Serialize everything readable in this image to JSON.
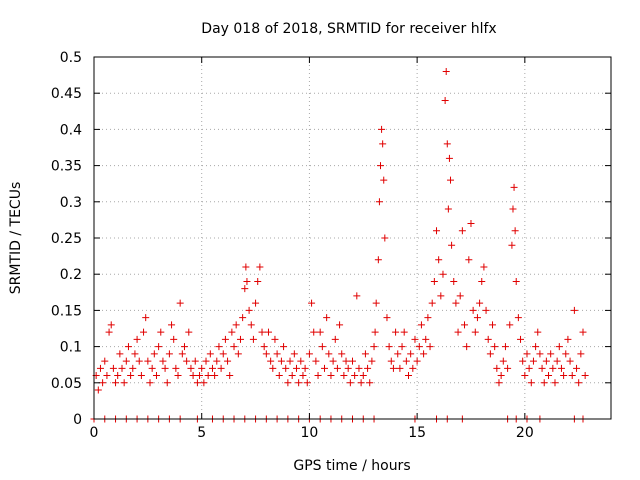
{
  "chart_data": {
    "type": "scatter",
    "title": "Day 018 of 2018, SRMTID for receiver hlfx",
    "xlabel": "GPS time / hours",
    "ylabel": "SRMTID / TECUs",
    "xlim": [
      0,
      24
    ],
    "ylim": [
      0,
      0.5
    ],
    "x_ticks": [
      0,
      5,
      10,
      15,
      20
    ],
    "x_tick_labels": [
      "0",
      "5",
      "10",
      "15",
      "20"
    ],
    "y_ticks": [
      0,
      0.05,
      0.1,
      0.15,
      0.2,
      0.25,
      0.3,
      0.35,
      0.4,
      0.45,
      0.5
    ],
    "y_tick_labels": [
      "0",
      "0.05",
      "0.1",
      "0.15",
      "0.2",
      "0.25",
      "0.3",
      "0.35",
      "0.4",
      "0.45",
      "0.5"
    ],
    "grid": true,
    "marker": "plus",
    "series": [
      {
        "name": "SRMTID",
        "color": "#e00000",
        "points": [
          [
            0.1,
            0.06
          ],
          [
            0.2,
            0.04
          ],
          [
            0.3,
            0.07
          ],
          [
            0.4,
            0.05
          ],
          [
            0.5,
            0.08
          ],
          [
            0.6,
            0.06
          ],
          [
            0.7,
            0.12
          ],
          [
            0.8,
            0.13
          ],
          [
            0.9,
            0.07
          ],
          [
            1.0,
            0.05
          ],
          [
            1.1,
            0.06
          ],
          [
            1.2,
            0.09
          ],
          [
            1.3,
            0.07
          ],
          [
            1.4,
            0.05
          ],
          [
            1.5,
            0.08
          ],
          [
            1.6,
            0.1
          ],
          [
            1.7,
            0.06
          ],
          [
            1.8,
            0.07
          ],
          [
            1.9,
            0.09
          ],
          [
            2.0,
            0.11
          ],
          [
            2.1,
            0.08
          ],
          [
            2.2,
            0.06
          ],
          [
            2.3,
            0.12
          ],
          [
            2.4,
            0.14
          ],
          [
            2.5,
            0.08
          ],
          [
            2.6,
            0.05
          ],
          [
            2.7,
            0.07
          ],
          [
            2.8,
            0.09
          ],
          [
            2.9,
            0.06
          ],
          [
            3.0,
            0.1
          ],
          [
            3.1,
            0.12
          ],
          [
            3.2,
            0.08
          ],
          [
            3.3,
            0.07
          ],
          [
            3.4,
            0.05
          ],
          [
            3.5,
            0.09
          ],
          [
            3.6,
            0.13
          ],
          [
            3.7,
            0.11
          ],
          [
            3.8,
            0.07
          ],
          [
            3.9,
            0.06
          ],
          [
            4.0,
            0.16
          ],
          [
            4.1,
            0.09
          ],
          [
            4.2,
            0.1
          ],
          [
            4.3,
            0.08
          ],
          [
            4.4,
            0.12
          ],
          [
            4.5,
            0.07
          ],
          [
            4.6,
            0.06
          ],
          [
            4.7,
            0.08
          ],
          [
            4.8,
            0.05
          ],
          [
            4.9,
            0.06
          ],
          [
            5.0,
            0.07
          ],
          [
            5.1,
            0.05
          ],
          [
            5.2,
            0.08
          ],
          [
            5.3,
            0.06
          ],
          [
            5.4,
            0.09
          ],
          [
            5.5,
            0.07
          ],
          [
            5.6,
            0.06
          ],
          [
            5.7,
            0.08
          ],
          [
            5.8,
            0.1
          ],
          [
            5.9,
            0.07
          ],
          [
            6.0,
            0.09
          ],
          [
            6.1,
            0.11
          ],
          [
            6.2,
            0.08
          ],
          [
            6.3,
            0.06
          ],
          [
            6.4,
            0.12
          ],
          [
            6.5,
            0.1
          ],
          [
            6.6,
            0.13
          ],
          [
            6.7,
            0.09
          ],
          [
            6.8,
            0.11
          ],
          [
            6.9,
            0.14
          ],
          [
            7.0,
            0.18
          ],
          [
            7.05,
            0.21
          ],
          [
            7.1,
            0.19
          ],
          [
            7.2,
            0.15
          ],
          [
            7.3,
            0.13
          ],
          [
            7.4,
            0.11
          ],
          [
            7.5,
            0.16
          ],
          [
            7.6,
            0.19
          ],
          [
            7.7,
            0.21
          ],
          [
            7.8,
            0.12
          ],
          [
            7.9,
            0.1
          ],
          [
            8.0,
            0.09
          ],
          [
            8.1,
            0.12
          ],
          [
            8.2,
            0.08
          ],
          [
            8.3,
            0.07
          ],
          [
            8.4,
            0.11
          ],
          [
            8.5,
            0.09
          ],
          [
            8.6,
            0.06
          ],
          [
            8.7,
            0.08
          ],
          [
            8.8,
            0.1
          ],
          [
            8.9,
            0.07
          ],
          [
            9.0,
            0.05
          ],
          [
            9.1,
            0.08
          ],
          [
            9.2,
            0.06
          ],
          [
            9.3,
            0.09
          ],
          [
            9.4,
            0.07
          ],
          [
            9.5,
            0.05
          ],
          [
            9.6,
            0.08
          ],
          [
            9.7,
            0.06
          ],
          [
            9.8,
            0.07
          ],
          [
            9.9,
            0.05
          ],
          [
            10.0,
            0.09
          ],
          [
            10.1,
            0.16
          ],
          [
            10.2,
            0.12
          ],
          [
            10.3,
            0.08
          ],
          [
            10.4,
            0.06
          ],
          [
            10.5,
            0.12
          ],
          [
            10.6,
            0.1
          ],
          [
            10.7,
            0.07
          ],
          [
            10.8,
            0.14
          ],
          [
            10.9,
            0.09
          ],
          [
            11.0,
            0.06
          ],
          [
            11.1,
            0.08
          ],
          [
            11.2,
            0.11
          ],
          [
            11.3,
            0.07
          ],
          [
            11.4,
            0.13
          ],
          [
            11.5,
            0.09
          ],
          [
            11.6,
            0.06
          ],
          [
            11.7,
            0.08
          ],
          [
            11.8,
            0.07
          ],
          [
            11.9,
            0.05
          ],
          [
            12.0,
            0.08
          ],
          [
            12.1,
            0.06
          ],
          [
            12.2,
            0.17
          ],
          [
            12.3,
            0.07
          ],
          [
            12.4,
            0.05
          ],
          [
            12.5,
            0.06
          ],
          [
            12.6,
            0.09
          ],
          [
            12.7,
            0.07
          ],
          [
            12.8,
            0.05
          ],
          [
            12.9,
            0.08
          ],
          [
            13.0,
            0.1
          ],
          [
            13.05,
            0.12
          ],
          [
            13.1,
            0.16
          ],
          [
            13.2,
            0.22
          ],
          [
            13.25,
            0.3
          ],
          [
            13.3,
            0.35
          ],
          [
            13.35,
            0.4
          ],
          [
            13.4,
            0.38
          ],
          [
            13.45,
            0.33
          ],
          [
            13.5,
            0.25
          ],
          [
            13.6,
            0.14
          ],
          [
            13.7,
            0.1
          ],
          [
            13.8,
            0.08
          ],
          [
            13.9,
            0.07
          ],
          [
            14.0,
            0.12
          ],
          [
            14.1,
            0.09
          ],
          [
            14.2,
            0.07
          ],
          [
            14.3,
            0.1
          ],
          [
            14.4,
            0.12
          ],
          [
            14.5,
            0.08
          ],
          [
            14.6,
            0.06
          ],
          [
            14.7,
            0.09
          ],
          [
            14.8,
            0.07
          ],
          [
            14.9,
            0.11
          ],
          [
            15.0,
            0.08
          ],
          [
            15.1,
            0.1
          ],
          [
            15.2,
            0.13
          ],
          [
            15.3,
            0.09
          ],
          [
            15.4,
            0.11
          ],
          [
            15.5,
            0.14
          ],
          [
            15.6,
            0.1
          ],
          [
            15.7,
            0.16
          ],
          [
            15.8,
            0.19
          ],
          [
            15.9,
            0.26
          ],
          [
            16.0,
            0.22
          ],
          [
            16.1,
            0.17
          ],
          [
            16.2,
            0.2
          ],
          [
            16.3,
            0.44
          ],
          [
            16.35,
            0.48
          ],
          [
            16.4,
            0.38
          ],
          [
            16.45,
            0.29
          ],
          [
            16.5,
            0.36
          ],
          [
            16.55,
            0.33
          ],
          [
            16.6,
            0.24
          ],
          [
            16.7,
            0.19
          ],
          [
            16.8,
            0.16
          ],
          [
            16.9,
            0.12
          ],
          [
            17.0,
            0.17
          ],
          [
            17.1,
            0.26
          ],
          [
            17.2,
            0.13
          ],
          [
            17.3,
            0.1
          ],
          [
            17.4,
            0.22
          ],
          [
            17.5,
            0.27
          ],
          [
            17.6,
            0.15
          ],
          [
            17.7,
            0.12
          ],
          [
            17.8,
            0.14
          ],
          [
            17.9,
            0.16
          ],
          [
            18.0,
            0.19
          ],
          [
            18.1,
            0.21
          ],
          [
            18.2,
            0.15
          ],
          [
            18.3,
            0.11
          ],
          [
            18.4,
            0.09
          ],
          [
            18.5,
            0.13
          ],
          [
            18.6,
            0.1
          ],
          [
            18.7,
            0.07
          ],
          [
            18.8,
            0.05
          ],
          [
            18.9,
            0.06
          ],
          [
            19.0,
            0.08
          ],
          [
            19.1,
            0.1
          ],
          [
            19.2,
            0.07
          ],
          [
            19.3,
            0.13
          ],
          [
            19.4,
            0.24
          ],
          [
            19.45,
            0.29
          ],
          [
            19.5,
            0.32
          ],
          [
            19.55,
            0.26
          ],
          [
            19.6,
            0.19
          ],
          [
            19.7,
            0.14
          ],
          [
            19.8,
            0.11
          ],
          [
            19.9,
            0.08
          ],
          [
            20.0,
            0.06
          ],
          [
            20.1,
            0.09
          ],
          [
            20.2,
            0.07
          ],
          [
            20.3,
            0.05
          ],
          [
            20.4,
            0.08
          ],
          [
            20.5,
            0.1
          ],
          [
            20.6,
            0.12
          ],
          [
            20.7,
            0.09
          ],
          [
            20.8,
            0.07
          ],
          [
            20.9,
            0.05
          ],
          [
            21.0,
            0.08
          ],
          [
            21.1,
            0.06
          ],
          [
            21.2,
            0.09
          ],
          [
            21.3,
            0.07
          ],
          [
            21.4,
            0.05
          ],
          [
            21.5,
            0.08
          ],
          [
            21.6,
            0.1
          ],
          [
            21.7,
            0.07
          ],
          [
            21.8,
            0.06
          ],
          [
            21.9,
            0.09
          ],
          [
            22.0,
            0.11
          ],
          [
            22.1,
            0.08
          ],
          [
            22.2,
            0.06
          ],
          [
            22.3,
            0.15
          ],
          [
            22.4,
            0.07
          ],
          [
            22.5,
            0.05
          ],
          [
            22.6,
            0.09
          ],
          [
            22.7,
            0.12
          ],
          [
            22.8,
            0.06
          ],
          [
            0.0,
            0.0
          ],
          [
            0.5,
            0.0
          ],
          [
            1.0,
            0.0
          ],
          [
            1.5,
            0.0
          ],
          [
            2.0,
            0.0
          ],
          [
            2.5,
            0.0
          ],
          [
            3.0,
            0.0
          ],
          [
            3.5,
            0.0
          ],
          [
            4.0,
            0.0
          ],
          [
            4.8,
            0.0
          ],
          [
            5.5,
            0.0
          ],
          [
            6.0,
            0.0
          ],
          [
            6.5,
            0.0
          ],
          [
            7.0,
            0.0
          ],
          [
            7.5,
            0.0
          ],
          [
            8.0,
            0.0
          ],
          [
            8.5,
            0.0
          ],
          [
            9.0,
            0.0
          ],
          [
            9.5,
            0.0
          ],
          [
            10.0,
            0.0
          ],
          [
            10.5,
            0.0
          ],
          [
            11.0,
            0.0
          ],
          [
            11.5,
            0.0
          ],
          [
            12.0,
            0.0
          ],
          [
            12.5,
            0.0
          ],
          [
            13.0,
            0.0
          ],
          [
            14.9,
            0.0
          ],
          [
            15.9,
            0.0
          ],
          [
            16.4,
            0.0
          ],
          [
            17.1,
            0.0
          ],
          [
            19.2,
            0.0
          ],
          [
            19.6,
            0.0
          ],
          [
            20.1,
            0.0
          ],
          [
            20.7,
            0.0
          ],
          [
            22.3,
            0.0
          ],
          [
            22.7,
            0.0
          ]
        ]
      }
    ]
  }
}
